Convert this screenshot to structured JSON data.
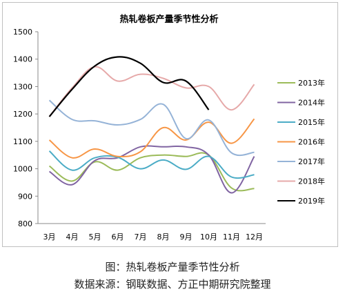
{
  "chart_data": {
    "type": "line",
    "title": "热轧卷板产量季节性分析",
    "categories": [
      "3月",
      "4月",
      "5月",
      "6月",
      "7月",
      "8月",
      "9月",
      "10月",
      "11月",
      "12月"
    ],
    "ylim": [
      800,
      1500
    ],
    "yticks": [
      800,
      900,
      1000,
      1100,
      1200,
      1300,
      1400,
      1500
    ],
    "grid": false,
    "legend": "right",
    "series": [
      {
        "name": "2013年",
        "color": "#9bbb59",
        "values": [
          1010,
          955,
          1025,
          995,
          1040,
          1050,
          1045,
          1050,
          930,
          928
        ]
      },
      {
        "name": "2014年",
        "color": "#8064a2",
        "values": [
          990,
          942,
          1030,
          1040,
          1080,
          1080,
          1080,
          1050,
          912,
          1045
        ]
      },
      {
        "name": "2015年",
        "color": "#4bacc6",
        "values": [
          1065,
          995,
          1040,
          1042,
          1000,
          1032,
          998,
          1045,
          970,
          978
        ]
      },
      {
        "name": "2016年",
        "color": "#f79646",
        "values": [
          1105,
          1040,
          1072,
          1045,
          1062,
          1150,
          1105,
          1170,
          1093,
          1182
        ]
      },
      {
        "name": "2017年",
        "color": "#95b3d7",
        "values": [
          1250,
          1180,
          1175,
          1160,
          1180,
          1235,
          1110,
          1178,
          1058,
          1060
        ]
      },
      {
        "name": "2018年",
        "color": "#e6a9a9",
        "values": [
          1190,
          1295,
          1372,
          1320,
          1345,
          1330,
          1295,
          1300,
          1215,
          1308
        ]
      },
      {
        "name": "2019年",
        "color": "#000000",
        "values": [
          1190,
          1290,
          1375,
          1408,
          1385,
          1315,
          1320,
          1215,
          null,
          null
        ]
      }
    ]
  },
  "caption": {
    "line1": "图：热轧卷板产量季节性分析",
    "line2": "数据来源：钢联数据、方正中期研究院整理"
  }
}
